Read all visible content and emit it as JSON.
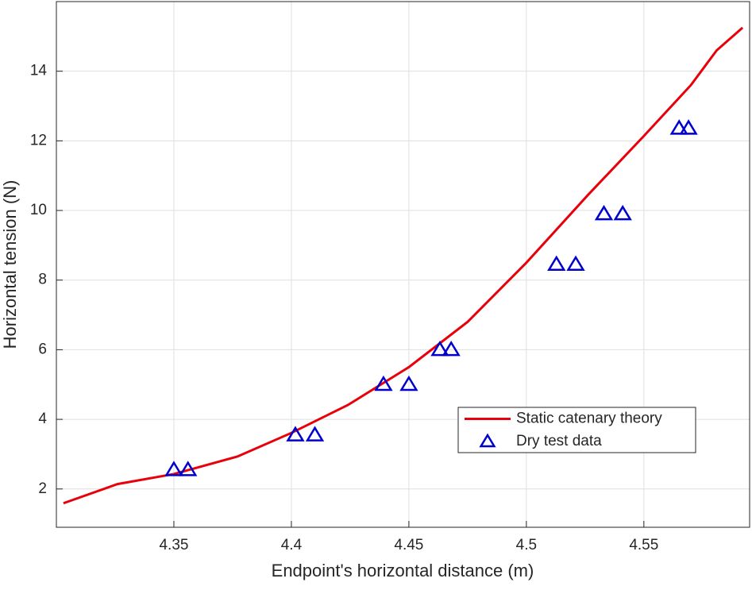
{
  "chart_data": {
    "type": "line",
    "x_label": "Endpoint's horizontal distance (m)",
    "y_label": "Horizontal tension (N)",
    "xlim": [
      4.3,
      4.595
    ],
    "ylim": [
      0.9,
      16
    ],
    "xticks": [
      4.35,
      4.4,
      4.45,
      4.5,
      4.55
    ],
    "yticks": [
      2,
      4,
      6,
      8,
      10,
      12,
      14
    ],
    "grid": true,
    "legend_position": "lower right",
    "series": [
      {
        "name": "Static catenary theory",
        "type": "line",
        "color": "#e8000b",
        "x": [
          4.303,
          4.326,
          4.35,
          4.377,
          4.4,
          4.424,
          4.45,
          4.475,
          4.5,
          4.526,
          4.55,
          4.57,
          4.581,
          4.592
        ],
        "values": [
          1.59,
          2.14,
          2.43,
          2.93,
          3.61,
          4.41,
          5.5,
          6.8,
          8.5,
          10.43,
          12.14,
          13.6,
          14.6,
          15.25
        ]
      },
      {
        "name": "Dry test data",
        "type": "scatter",
        "color": "#0000cc",
        "x": [
          4.35,
          4.356,
          4.4017,
          4.41,
          4.4392,
          4.45,
          4.4632,
          4.468,
          4.5128,
          4.521,
          4.533,
          4.541,
          4.565,
          4.569
        ],
        "values": [
          2.55,
          2.55,
          3.55,
          3.55,
          5.0,
          5.0,
          6.0,
          6.0,
          8.45,
          8.45,
          9.9,
          9.9,
          12.36,
          12.36
        ]
      }
    ]
  }
}
